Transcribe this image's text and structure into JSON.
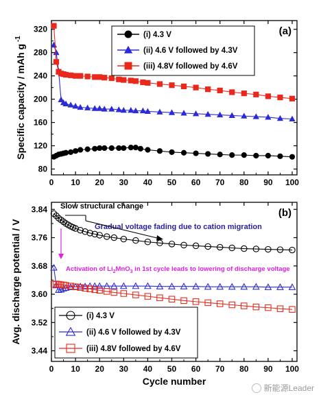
{
  "colors": {
    "black": "#000000",
    "blue": "#2b2bd6",
    "red": "#e8291c",
    "magenta": "#e020e0",
    "navy": "#2a1fa0"
  },
  "chart_data": [
    {
      "type": "scatter",
      "panel_label": "(a)",
      "ylabel": "Specific capacity / mAh g",
      "ylabel_sup": "-1",
      "xlim": [
        0,
        102
      ],
      "ylim": [
        70,
        335
      ],
      "xticks": [
        0,
        10,
        20,
        30,
        40,
        50,
        60,
        70,
        80,
        90,
        100
      ],
      "yticks": [
        80,
        120,
        160,
        200,
        240,
        280,
        320
      ],
      "legend_position": "top-right",
      "series": [
        {
          "name": "(i) 4.3 V",
          "marker": "circle-filled",
          "color": "#000000",
          "x": [
            1,
            2,
            3,
            4,
            5,
            6,
            8,
            10,
            12,
            15,
            18,
            20,
            22,
            25,
            28,
            30,
            33,
            35,
            37,
            40,
            45,
            50,
            55,
            60,
            65,
            70,
            75,
            80,
            85,
            90,
            95,
            100
          ],
          "y": [
            101,
            103,
            105,
            106,
            107,
            108,
            109,
            111,
            113,
            114,
            115,
            116,
            116,
            116,
            116,
            116,
            117,
            117,
            115,
            113,
            111,
            109,
            108,
            107,
            106,
            105,
            104,
            104,
            103,
            103,
            102,
            101
          ]
        },
        {
          "name": "(ii) 4.6 V followed by 4.3V",
          "marker": "triangle-filled",
          "color": "#2b2bd6",
          "x": [
            1,
            2,
            3,
            4,
            5,
            6,
            8,
            10,
            12,
            15,
            18,
            20,
            22,
            25,
            28,
            30,
            33,
            35,
            38,
            40,
            45,
            50,
            55,
            60,
            65,
            70,
            75,
            80,
            85,
            90,
            95,
            100
          ],
          "y": [
            293,
            280,
            248,
            199,
            194,
            192,
            190,
            188,
            186,
            185,
            184,
            184,
            183,
            183,
            182,
            181,
            181,
            180,
            180,
            179,
            178,
            177,
            176,
            175,
            174,
            173,
            172,
            171,
            170,
            169,
            167,
            166
          ]
        },
        {
          "name": "(iii) 4.8V followed by 4.6V",
          "marker": "square-filled",
          "color": "#e8291c",
          "x": [
            1,
            2,
            3,
            4,
            5,
            6,
            8,
            10,
            12,
            15,
            18,
            20,
            22,
            25,
            28,
            30,
            33,
            35,
            38,
            40,
            45,
            50,
            55,
            60,
            65,
            70,
            75,
            80,
            85,
            90,
            95,
            100
          ],
          "y": [
            326,
            264,
            247,
            244,
            243,
            242,
            241,
            240,
            240,
            239,
            238,
            238,
            237,
            236,
            234,
            233,
            232,
            231,
            229,
            228,
            226,
            224,
            222,
            220,
            217,
            215,
            212,
            210,
            208,
            205,
            203,
            201
          ]
        }
      ]
    },
    {
      "type": "scatter",
      "panel_label": "(b)",
      "xlabel": "Cycle number",
      "ylabel": "Avg. discharge potential / V",
      "xlim": [
        0,
        102
      ],
      "ylim": [
        3.41,
        3.86
      ],
      "xticks": [
        0,
        10,
        20,
        30,
        40,
        50,
        60,
        70,
        80,
        90,
        100
      ],
      "yticks": [
        3.44,
        3.52,
        3.6,
        3.68,
        3.76,
        3.84
      ],
      "legend_position": "bottom-left",
      "annotations": {
        "slow": "Slow structural change",
        "fading": "Gradual voltage fading due to cation migration",
        "activation_pre": "Activation of Li",
        "activation_sub1": "2",
        "activation_mid": "MnO",
        "activation_sub2": "3",
        "activation_post": " in 1st cycle leads to lowering of discharge voltage"
      },
      "series": [
        {
          "name": "(i) 4.3 V",
          "marker": "circle-open",
          "color": "#000000",
          "x": [
            1,
            2,
            3,
            4,
            5,
            6,
            7,
            8,
            9,
            10,
            12,
            14,
            16,
            18,
            20,
            23,
            26,
            30,
            35,
            40,
            45,
            50,
            55,
            60,
            65,
            70,
            75,
            80,
            85,
            90,
            95,
            100
          ],
          "y": [
            3.828,
            3.822,
            3.815,
            3.81,
            3.805,
            3.8,
            3.796,
            3.792,
            3.789,
            3.786,
            3.781,
            3.777,
            3.773,
            3.77,
            3.767,
            3.763,
            3.76,
            3.756,
            3.752,
            3.748,
            3.745,
            3.742,
            3.739,
            3.737,
            3.735,
            3.733,
            3.731,
            3.729,
            3.728,
            3.727,
            3.726,
            3.725
          ]
        },
        {
          "name": "(ii) 4.6 V followed by 4.3V",
          "marker": "triangle-open",
          "color": "#2b2bd6",
          "x": [
            1,
            2,
            3,
            4,
            5,
            6,
            8,
            10,
            12,
            14,
            16,
            18,
            20,
            23,
            26,
            30,
            35,
            40,
            45,
            50,
            55,
            60,
            65,
            70,
            75,
            80,
            85,
            90,
            95,
            100
          ],
          "y": [
            3.675,
            3.625,
            3.612,
            3.613,
            3.616,
            3.618,
            3.62,
            3.621,
            3.622,
            3.622,
            3.623,
            3.623,
            3.623,
            3.623,
            3.623,
            3.623,
            3.623,
            3.623,
            3.622,
            3.622,
            3.622,
            3.622,
            3.621,
            3.621,
            3.621,
            3.621,
            3.621,
            3.62,
            3.62,
            3.62
          ]
        },
        {
          "name": "(iii) 4.8V followed by 4.6V",
          "marker": "square-open",
          "color": "#e8291c",
          "x": [
            1,
            2,
            3,
            4,
            5,
            6,
            8,
            10,
            12,
            14,
            16,
            18,
            20,
            23,
            26,
            30,
            35,
            40,
            45,
            50,
            55,
            60,
            65,
            70,
            75,
            80,
            85,
            90,
            95,
            100
          ],
          "y": [
            3.628,
            3.629,
            3.628,
            3.627,
            3.626,
            3.625,
            3.623,
            3.621,
            3.619,
            3.617,
            3.615,
            3.613,
            3.611,
            3.608,
            3.605,
            3.602,
            3.598,
            3.594,
            3.59,
            3.586,
            3.582,
            3.579,
            3.576,
            3.573,
            3.57,
            3.567,
            3.564,
            3.562,
            3.559,
            3.557
          ]
        }
      ]
    }
  ],
  "watermark": {
    "text": "新能源Leader"
  }
}
